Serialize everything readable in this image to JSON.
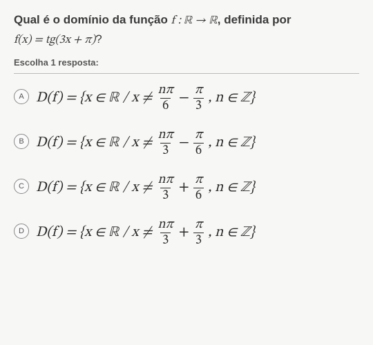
{
  "question": {
    "line1_pre": "Qual é o domínio da função ",
    "line1_math": "f : ℝ → ℝ",
    "line1_post": ", definida por",
    "line2_math": "f(x) = tg(3x + π)",
    "line2_q": "?"
  },
  "instruction": "Escolha 1 resposta:",
  "options": [
    {
      "letter": "A",
      "lhs": "D(f) = {x ∈ ℝ / x ≠",
      "frac1_num": "nπ",
      "frac1_den": "6",
      "op": "−",
      "frac2_num": "π",
      "frac2_den": "3",
      "rhs": ", n ∈ ℤ}"
    },
    {
      "letter": "B",
      "lhs": "D(f) = {x ∈ ℝ / x ≠",
      "frac1_num": "nπ",
      "frac1_den": "3",
      "op": "−",
      "frac2_num": "π",
      "frac2_den": "6",
      "rhs": ", n ∈ ℤ}"
    },
    {
      "letter": "C",
      "lhs": "D(f) = {x ∈ ℝ / x ≠",
      "frac1_num": "nπ",
      "frac1_den": "3",
      "op": "+",
      "frac2_num": "π",
      "frac2_den": "6",
      "rhs": ", n ∈ ℤ}"
    },
    {
      "letter": "D",
      "lhs": "D(f) = {x ∈ ℝ / x ≠",
      "frac1_num": "nπ",
      "frac1_den": "3",
      "op": "+",
      "frac2_num": "π",
      "frac2_den": "3",
      "rhs": ", n ∈ ℤ}"
    }
  ],
  "styles": {
    "background": "#f7f7f5",
    "text_color": "#2a2a2a",
    "bubble_border": "#888",
    "divider": "#bbb"
  }
}
